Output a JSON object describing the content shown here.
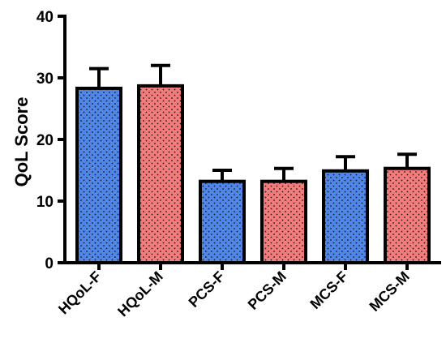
{
  "chart_data": {
    "type": "bar",
    "title": "",
    "xlabel": "",
    "ylabel": "QoL Score",
    "ylim": [
      0,
      40
    ],
    "yticks": [
      0,
      10,
      20,
      30,
      40
    ],
    "grid": false,
    "categories": [
      "HQoL-F",
      "HQoL-M",
      "PCS-F",
      "PCS-M",
      "MCS-F",
      "MCS-M"
    ],
    "values": [
      28.3,
      28.7,
      13.2,
      13.2,
      14.9,
      15.3
    ],
    "errors": [
      3.2,
      3.3,
      1.8,
      2.1,
      2.3,
      2.3
    ],
    "colors": [
      "#4f86e8",
      "#f27c7c",
      "#4f86e8",
      "#f27c7c",
      "#4f86e8",
      "#f27c7c"
    ],
    "pattern": "dotted"
  }
}
